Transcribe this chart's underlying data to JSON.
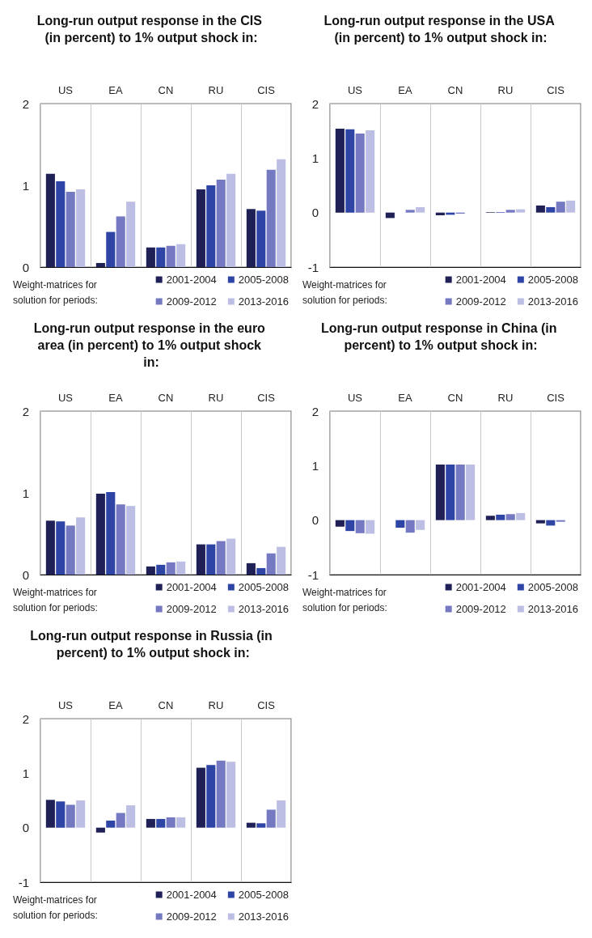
{
  "chart_data": [
    {
      "type": "bar",
      "title": "Long-run output response in the CIS (in percent) to 1% output shock in:",
      "legend_title": "Weight-matrices for solution for periods:",
      "categories": [
        "US",
        "EA",
        "CN",
        "RU",
        "CIS"
      ],
      "ylim": [
        0,
        2
      ],
      "yticks": [
        0,
        1,
        2
      ],
      "grid": "x",
      "legend": "bottom",
      "series": [
        {
          "name": "2001-2004",
          "color": "#1f2055",
          "values": [
            1.14,
            0.05,
            0.24,
            0.95,
            0.71
          ]
        },
        {
          "name": "2005-2008",
          "color": "#2e45a6",
          "values": [
            1.05,
            0.43,
            0.24,
            1.0,
            0.69
          ]
        },
        {
          "name": "2009-2012",
          "color": "#7479c2",
          "values": [
            0.92,
            0.62,
            0.26,
            1.07,
            1.19
          ]
        },
        {
          "name": "2013-2016",
          "color": "#bcbfe3",
          "values": [
            0.95,
            0.8,
            0.28,
            1.14,
            1.32
          ]
        }
      ]
    },
    {
      "type": "bar",
      "title": "Long-run output response in the USA (in percent) to 1% output shock in:",
      "legend_title": "Weight-matrices for solution for periods:",
      "categories": [
        "US",
        "EA",
        "CN",
        "RU",
        "CIS"
      ],
      "ylim": [
        -1,
        2
      ],
      "yticks": [
        -1,
        0,
        1,
        2
      ],
      "grid": "x",
      "legend": "bottom",
      "series": [
        {
          "name": "2001-2004",
          "color": "#1f2055",
          "values": [
            1.54,
            -0.1,
            -0.05,
            0.01,
            0.13
          ]
        },
        {
          "name": "2005-2008",
          "color": "#2e45a6",
          "values": [
            1.53,
            0,
            -0.04,
            0.01,
            0.1
          ]
        },
        {
          "name": "2009-2012",
          "color": "#7479c2",
          "values": [
            1.45,
            0.05,
            -0.02,
            0.05,
            0.2
          ]
        },
        {
          "name": "2013-2016",
          "color": "#bcbfe3",
          "values": [
            1.51,
            0.1,
            null,
            0.06,
            0.22
          ]
        }
      ]
    },
    {
      "type": "bar",
      "title": "Long-run output response in the euro area (in percent) to 1% output shock in:",
      "legend_title": "Weight-matrices for solution for periods:",
      "categories": [
        "US",
        "EA",
        "CN",
        "RU",
        "CIS"
      ],
      "ylim": [
        0,
        2
      ],
      "yticks": [
        0,
        1,
        2
      ],
      "grid": "x",
      "legend": "bottom",
      "series": [
        {
          "name": "2001-2004",
          "color": "#1f2055",
          "values": [
            0.66,
            0.99,
            0.1,
            0.37,
            0.14
          ]
        },
        {
          "name": "2005-2008",
          "color": "#2e45a6",
          "values": [
            0.65,
            1.01,
            0.12,
            0.37,
            0.08
          ]
        },
        {
          "name": "2009-2012",
          "color": "#7479c2",
          "values": [
            0.6,
            0.86,
            0.15,
            0.41,
            0.26
          ]
        },
        {
          "name": "2013-2016",
          "color": "#bcbfe3",
          "values": [
            0.7,
            0.84,
            0.16,
            0.44,
            0.34
          ]
        }
      ]
    },
    {
      "type": "bar",
      "title": "Long-run output response in China (in percent) to 1% output shock in:",
      "legend_title": "Weight-matrices for solution for periods:",
      "categories": [
        "US",
        "EA",
        "CN",
        "RU",
        "CIS"
      ],
      "ylim": [
        -1,
        2
      ],
      "yticks": [
        -1,
        0,
        1,
        2
      ],
      "grid": "x",
      "legend": "bottom",
      "series": [
        {
          "name": "2001-2004",
          "color": "#1f2055",
          "values": [
            -0.12,
            0,
            1.02,
            0.08,
            -0.06
          ]
        },
        {
          "name": "2005-2008",
          "color": "#2e45a6",
          "values": [
            -0.2,
            -0.14,
            1.02,
            0.1,
            -0.1
          ]
        },
        {
          "name": "2009-2012",
          "color": "#7479c2",
          "values": [
            -0.24,
            -0.23,
            1.02,
            0.11,
            -0.03
          ]
        },
        {
          "name": "2013-2016",
          "color": "#bcbfe3",
          "values": [
            -0.25,
            -0.18,
            1.02,
            0.13,
            null
          ]
        }
      ]
    },
    {
      "type": "bar",
      "title": "Long-run output response in Russia (in percent) to 1% output shock in:",
      "legend_title": "Weight-matrices for solution for periods:",
      "categories": [
        "US",
        "EA",
        "CN",
        "RU",
        "CIS"
      ],
      "ylim": [
        -1,
        2
      ],
      "yticks": [
        -1,
        0,
        1,
        2
      ],
      "grid": "x",
      "legend": "bottom",
      "series": [
        {
          "name": "2001-2004",
          "color": "#1f2055",
          "values": [
            0.51,
            -0.09,
            0.16,
            1.1,
            0.09
          ]
        },
        {
          "name": "2005-2008",
          "color": "#2e45a6",
          "values": [
            0.48,
            0.13,
            0.16,
            1.15,
            0.08
          ]
        },
        {
          "name": "2009-2012",
          "color": "#7479c2",
          "values": [
            0.42,
            0.27,
            0.19,
            1.23,
            0.33
          ]
        },
        {
          "name": "2013-2016",
          "color": "#bcbfe3",
          "values": [
            0.5,
            0.41,
            0.19,
            1.21,
            0.5
          ]
        }
      ]
    }
  ]
}
